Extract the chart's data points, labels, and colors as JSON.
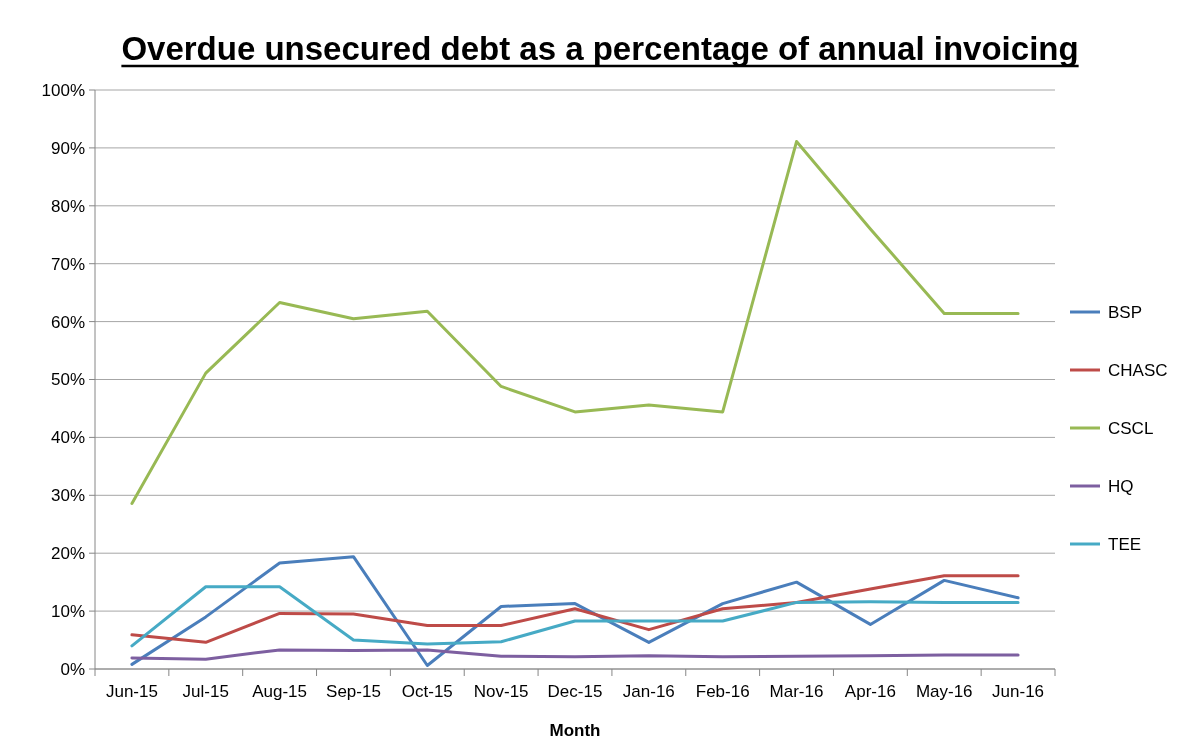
{
  "chart_data": {
    "type": "line",
    "title": "Overdue unsecured debt as a percentage of annual invoicing",
    "xlabel": "Month",
    "categories": [
      "Jun-15",
      "Jul-15",
      "Aug-15",
      "Sep-15",
      "Oct-15",
      "Nov-15",
      "Dec-15",
      "Jan-16",
      "Feb-16",
      "Mar-16",
      "Apr-16",
      "May-16",
      "Jun-16"
    ],
    "series": [
      {
        "name": "BSP",
        "color": "#4a7ebb",
        "values": [
          0.8,
          9,
          18.3,
          19.4,
          0.6,
          10.8,
          11.3,
          4.6,
          11.3,
          15,
          7.7,
          15.3,
          12.3
        ]
      },
      {
        "name": "CHASC",
        "color": "#be4b48",
        "values": [
          5.9,
          4.6,
          9.6,
          9.5,
          7.5,
          7.5,
          10.4,
          6.8,
          10.4,
          11.5,
          13.8,
          16.1,
          16.1
        ]
      },
      {
        "name": "CSCL",
        "color": "#98b954",
        "values": [
          28.6,
          51.1,
          63.3,
          60.5,
          61.8,
          48.8,
          44.4,
          45.6,
          44.4,
          91.1,
          76,
          61.4,
          61.4
        ]
      },
      {
        "name": "HQ",
        "color": "#7d5fa0",
        "values": [
          1.9,
          1.7,
          3.3,
          3.2,
          3.3,
          2.2,
          2.1,
          2.3,
          2.1,
          2.2,
          2.3,
          2.4,
          2.4
        ]
      },
      {
        "name": "TEE",
        "color": "#46aac5",
        "values": [
          4,
          14.2,
          14.2,
          5,
          4.3,
          4.7,
          8.3,
          8.3,
          8.3,
          11.5,
          11.6,
          11.5,
          11.5
        ]
      }
    ],
    "ylim": [
      0,
      100
    ],
    "yticks": [
      {
        "value": 0,
        "label": "0%"
      },
      {
        "value": 10,
        "label": "10%"
      },
      {
        "value": 20,
        "label": "20%"
      },
      {
        "value": 30,
        "label": "30%"
      },
      {
        "value": 40,
        "label": "40%"
      },
      {
        "value": 50,
        "label": "50%"
      },
      {
        "value": 60,
        "label": "60%"
      },
      {
        "value": 70,
        "label": "70%"
      },
      {
        "value": 80,
        "label": "80%"
      },
      {
        "value": 90,
        "label": "90%"
      },
      {
        "value": 100,
        "label": "100%"
      }
    ],
    "grid": "y",
    "legend": "right",
    "marker": "none",
    "line_style": "solid"
  }
}
